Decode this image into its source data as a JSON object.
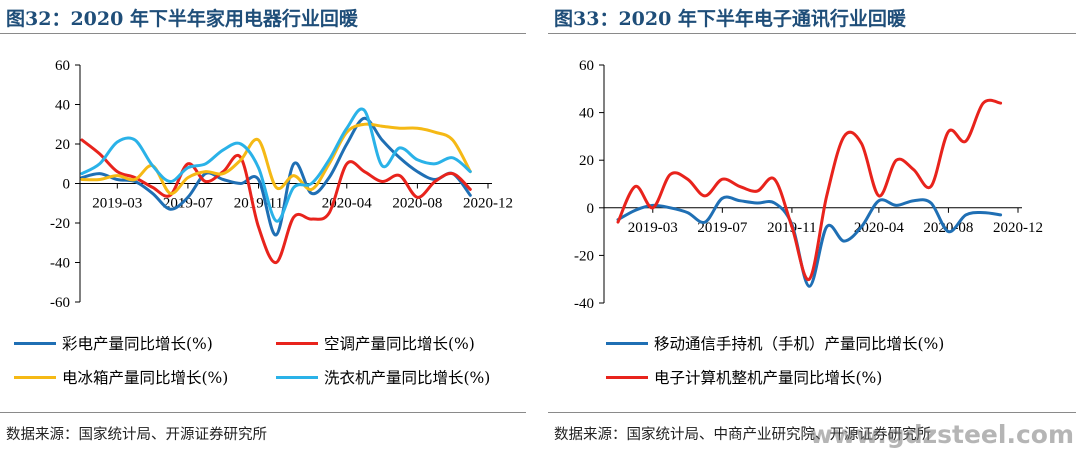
{
  "panels": [
    {
      "title": "图32：2020 年下半年家用电器行业回暖",
      "source": "数据来源：国家统计局、开源证券研究所"
    },
    {
      "title": "图33：2020 年下半年电子通讯行业回暖",
      "source": "数据来源：国家统计局、中商产业研究院、开源证券研究所"
    }
  ],
  "watermark": "www.gdzsteel.com",
  "chart_data": [
    {
      "type": "line",
      "x": [
        "2019-01",
        "2019-02",
        "2019-03",
        "2019-04",
        "2019-05",
        "2019-06",
        "2019-07",
        "2019-08",
        "2019-09",
        "2019-10",
        "2019-11",
        "2019-12",
        "2020-01",
        "2020-02",
        "2020-03",
        "2020-04",
        "2020-05",
        "2020-06",
        "2020-07",
        "2020-08",
        "2020-09",
        "2020-10",
        "2020-11"
      ],
      "xticks": [
        "2019-03",
        "2019-07",
        "2019-11",
        "2020-04",
        "2020-08",
        "2020-12"
      ],
      "ylim": [
        -60,
        60
      ],
      "yticks": [
        -60,
        -40,
        -20,
        0,
        20,
        40,
        60
      ],
      "grid": false,
      "legend_position": "bottom",
      "series": [
        {
          "name": "彩电产量同比增长(%)",
          "color": "#1f6fb4",
          "values": [
            3,
            5,
            2,
            1,
            -5,
            -13,
            -7,
            5,
            2,
            0,
            2,
            -26,
            10,
            -5,
            3,
            20,
            33,
            22,
            13,
            6,
            2,
            5,
            -6
          ]
        },
        {
          "name": "空调产量同比增长(%)",
          "color": "#e8231c",
          "values": [
            22,
            15,
            6,
            3,
            -2,
            -6,
            10,
            1,
            6,
            13,
            -22,
            -40,
            -17,
            -18,
            -15,
            10,
            6,
            1,
            4,
            -7,
            1,
            5,
            -3
          ]
        },
        {
          "name": "电冰箱产量同比增长(%)",
          "color": "#f5b915",
          "values": [
            2,
            2,
            4,
            2,
            9,
            -5,
            3,
            6,
            5,
            12,
            22,
            -2,
            4,
            -3,
            10,
            26,
            30,
            29,
            28,
            28,
            26,
            22,
            6
          ]
        },
        {
          "name": "洗衣机产量同比增长(%)",
          "color": "#2ab2e8",
          "values": [
            5,
            10,
            21,
            22,
            9,
            1,
            8,
            10,
            17,
            20,
            8,
            -19,
            -2,
            0,
            12,
            28,
            37,
            9,
            18,
            12,
            10,
            13,
            6
          ]
        }
      ]
    },
    {
      "type": "line",
      "x": [
        "2019-01",
        "2019-02",
        "2019-03",
        "2019-04",
        "2019-05",
        "2019-06",
        "2019-07",
        "2019-08",
        "2019-09",
        "2019-10",
        "2019-11",
        "2019-12",
        "2020-01",
        "2020-02",
        "2020-03",
        "2020-04",
        "2020-05",
        "2020-06",
        "2020-07",
        "2020-08",
        "2020-09",
        "2020-10",
        "2020-11"
      ],
      "xticks": [
        "2019-03",
        "2019-07",
        "2019-11",
        "2020-04",
        "2020-08",
        "2020-12"
      ],
      "ylim": [
        -40,
        60
      ],
      "yticks": [
        -40,
        -20,
        0,
        20,
        40,
        60
      ],
      "grid": false,
      "legend_position": "bottom",
      "series": [
        {
          "name": "移动通信手持机（手机）产量同比增长(%)",
          "color": "#1f6fb4",
          "values": [
            -5,
            -1,
            1,
            0,
            -2,
            -6,
            4,
            3,
            2,
            2,
            -7,
            -33,
            -8,
            -14,
            -8,
            3,
            1,
            3,
            2,
            -10,
            -3,
            -2,
            -3
          ]
        },
        {
          "name": "电子计算机整机产量同比增长(%)",
          "color": "#e8231c",
          "values": [
            -6,
            9,
            0,
            14,
            12,
            5,
            12,
            9,
            7,
            12,
            -8,
            -30,
            5,
            30,
            27,
            5,
            20,
            16,
            9,
            32,
            28,
            44,
            44
          ]
        }
      ]
    }
  ]
}
